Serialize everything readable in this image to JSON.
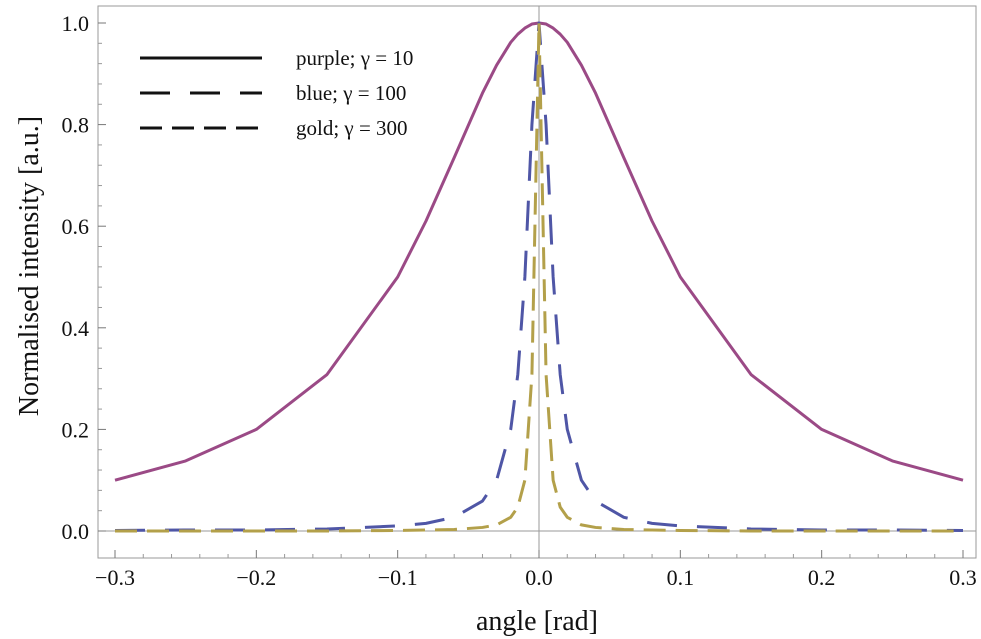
{
  "chart_data": {
    "type": "line",
    "xlabel": "angle [rad]",
    "ylabel": "Normalised intensity [a.u.]",
    "xlim": [
      -0.3,
      0.3
    ],
    "ylim": [
      0.0,
      1.0
    ],
    "x_ticks": [
      "−0.3",
      "−0.2",
      "−0.1",
      "0.0",
      "0.1",
      "0.2",
      "0.3"
    ],
    "y_ticks": [
      "0.0",
      "0.2",
      "0.4",
      "0.6",
      "0.8",
      "1.0"
    ],
    "grid": false,
    "legend_position": "top-left",
    "x": [
      -0.3,
      -0.25,
      -0.2,
      -0.15,
      -0.1,
      -0.08,
      -0.06,
      -0.04,
      -0.03,
      -0.02,
      -0.015,
      -0.01,
      -0.005,
      0.0,
      0.005,
      0.01,
      0.015,
      0.02,
      0.03,
      0.04,
      0.06,
      0.08,
      0.1,
      0.15,
      0.2,
      0.25,
      0.3
    ],
    "series": [
      {
        "name": "purple; γ = 10",
        "color": "#9b4a86",
        "dash": "solid",
        "values": [
          0.1,
          0.138,
          0.2,
          0.308,
          0.5,
          0.61,
          0.735,
          0.862,
          0.917,
          0.962,
          0.978,
          0.99,
          0.998,
          1.0,
          0.998,
          0.99,
          0.978,
          0.962,
          0.917,
          0.862,
          0.735,
          0.61,
          0.5,
          0.308,
          0.2,
          0.138,
          0.1
        ]
      },
      {
        "name": "blue;  γ = 100",
        "color": "#4f56a6",
        "dash": "long",
        "values": [
          0.001,
          0.002,
          0.002,
          0.004,
          0.01,
          0.015,
          0.027,
          0.059,
          0.1,
          0.2,
          0.308,
          0.5,
          0.8,
          1.0,
          0.8,
          0.5,
          0.308,
          0.2,
          0.1,
          0.059,
          0.027,
          0.015,
          0.01,
          0.004,
          0.002,
          0.002,
          0.001
        ]
      },
      {
        "name": "gold; γ = 300",
        "color": "#b3a04a",
        "dash": "medium",
        "values": [
          0.0,
          0.0,
          0.0,
          0.0,
          0.001,
          0.002,
          0.003,
          0.007,
          0.012,
          0.027,
          0.047,
          0.1,
          0.308,
          1.0,
          0.308,
          0.1,
          0.047,
          0.027,
          0.012,
          0.007,
          0.003,
          0.002,
          0.001,
          0.0,
          0.0,
          0.0,
          0.0
        ]
      }
    ],
    "legend": [
      {
        "label": "purple; γ = 10",
        "dash": "solid"
      },
      {
        "label": "blue;  γ = 100",
        "dash": "long"
      },
      {
        "label": "gold; γ = 300",
        "dash": "medium"
      }
    ]
  }
}
